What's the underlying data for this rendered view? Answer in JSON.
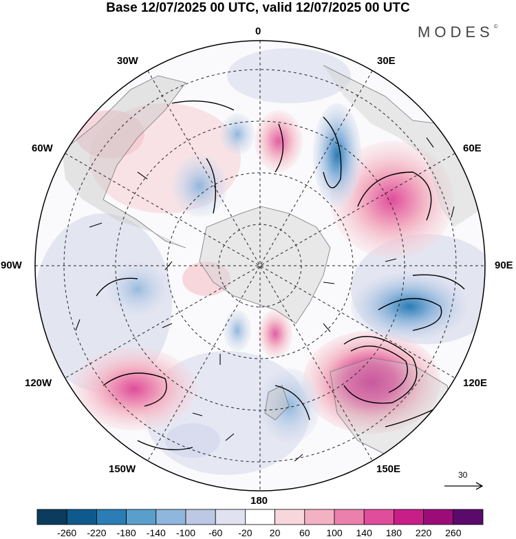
{
  "title": "Base 12/07/2025 00 UTC, valid 12/07/2025 00 UTC",
  "brand": {
    "name": "MODES",
    "mark": "©"
  },
  "map": {
    "projection": "south-polar-stereographic",
    "longitude_labels": {
      "top": "0",
      "bottom": "180",
      "left": "90W",
      "right": "90E",
      "w30": "30W",
      "e30": "30E",
      "w60": "60W",
      "e60": "60E",
      "w120": "120W",
      "e120": "120E",
      "w150": "150W",
      "e150": "150E"
    },
    "reference_vector": "30"
  },
  "colorbar": {
    "ticks": [
      "-260",
      "-220",
      "-180",
      "-140",
      "-100",
      "-60",
      "-20",
      "20",
      "60",
      "100",
      "140",
      "180",
      "220",
      "260"
    ],
    "colors": [
      "#0b3c5d",
      "#0f5a8c",
      "#2a7db5",
      "#5a9fcc",
      "#8fb6dc",
      "#bcc8e4",
      "#e0e2f0",
      "#ffffff",
      "#f8d7dc",
      "#f3b2c4",
      "#ec80ac",
      "#e04d9a",
      "#c71e87",
      "#9b0c79",
      "#5b0a6b"
    ]
  }
}
